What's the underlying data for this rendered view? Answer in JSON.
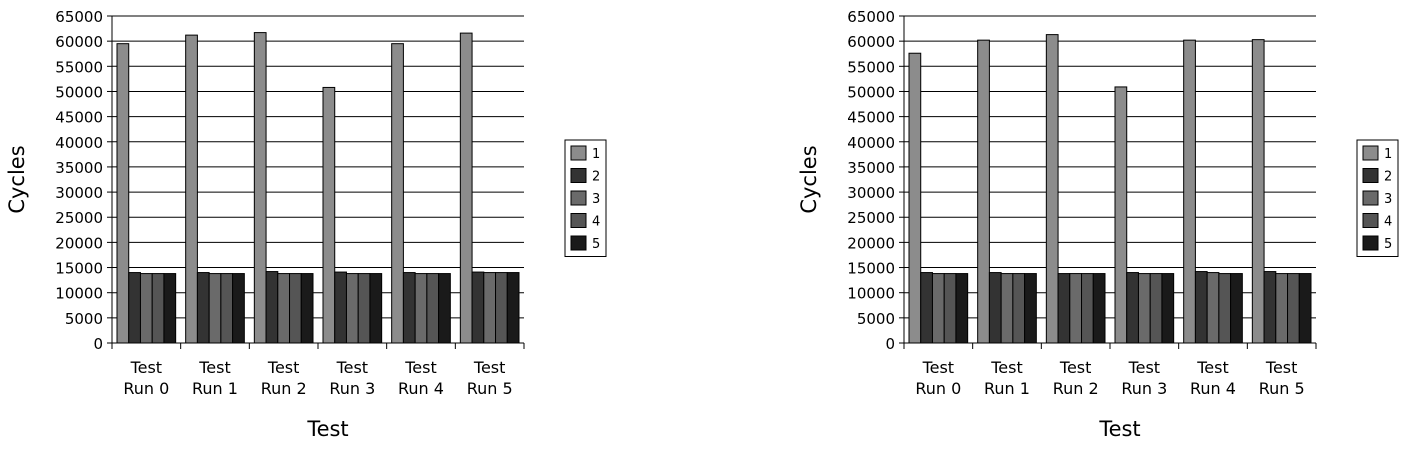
{
  "chart_data": [
    {
      "type": "bar",
      "title": "",
      "xlabel": "Test",
      "ylabel": "Cycles",
      "ylim": [
        0,
        65000
      ],
      "yticks": [
        0,
        5000,
        10000,
        15000,
        20000,
        25000,
        30000,
        35000,
        40000,
        45000,
        50000,
        55000,
        60000,
        65000
      ],
      "grid": "horizontal",
      "legend": "right",
      "categories": [
        [
          "Test",
          "Run 0"
        ],
        [
          "Test",
          "Run 1"
        ],
        [
          "Test",
          "Run 2"
        ],
        [
          "Test",
          "Run 3"
        ],
        [
          "Test",
          "Run 4"
        ],
        [
          "Test",
          "Run 5"
        ]
      ],
      "series": [
        {
          "name": "1",
          "color": "#8c8c8c",
          "values": [
            59500,
            61200,
            61700,
            50800,
            59500,
            61600
          ]
        },
        {
          "name": "2",
          "color": "#333333",
          "values": [
            14000,
            14000,
            14200,
            14100,
            14000,
            14100
          ]
        },
        {
          "name": "3",
          "color": "#6a6a6a",
          "values": [
            13800,
            13800,
            13800,
            13800,
            13800,
            14000
          ]
        },
        {
          "name": "4",
          "color": "#555555",
          "values": [
            13800,
            13800,
            13800,
            13800,
            13800,
            14000
          ]
        },
        {
          "name": "5",
          "color": "#1a1a1a",
          "values": [
            13800,
            13800,
            13800,
            13800,
            13800,
            14000
          ]
        }
      ]
    },
    {
      "type": "bar",
      "title": "",
      "xlabel": "Test",
      "ylabel": "Cycles",
      "ylim": [
        0,
        65000
      ],
      "yticks": [
        0,
        5000,
        10000,
        15000,
        20000,
        25000,
        30000,
        35000,
        40000,
        45000,
        50000,
        55000,
        60000,
        65000
      ],
      "grid": "horizontal",
      "legend": "right",
      "categories": [
        [
          "Test",
          "Run 0"
        ],
        [
          "Test",
          "Run 1"
        ],
        [
          "Test",
          "Run 2"
        ],
        [
          "Test",
          "Run 3"
        ],
        [
          "Test",
          "Run 4"
        ],
        [
          "Test",
          "Run 5"
        ]
      ],
      "series": [
        {
          "name": "1",
          "color": "#8c8c8c",
          "values": [
            57600,
            60200,
            61300,
            50900,
            60200,
            60300
          ]
        },
        {
          "name": "2",
          "color": "#333333",
          "values": [
            14000,
            14000,
            13800,
            14000,
            14200,
            14200
          ]
        },
        {
          "name": "3",
          "color": "#6a6a6a",
          "values": [
            13800,
            13800,
            13800,
            13800,
            14000,
            13800
          ]
        },
        {
          "name": "4",
          "color": "#555555",
          "values": [
            13800,
            13800,
            13800,
            13800,
            13800,
            13800
          ]
        },
        {
          "name": "5",
          "color": "#1a1a1a",
          "values": [
            13800,
            13800,
            13800,
            13800,
            13800,
            13800
          ]
        }
      ]
    }
  ]
}
